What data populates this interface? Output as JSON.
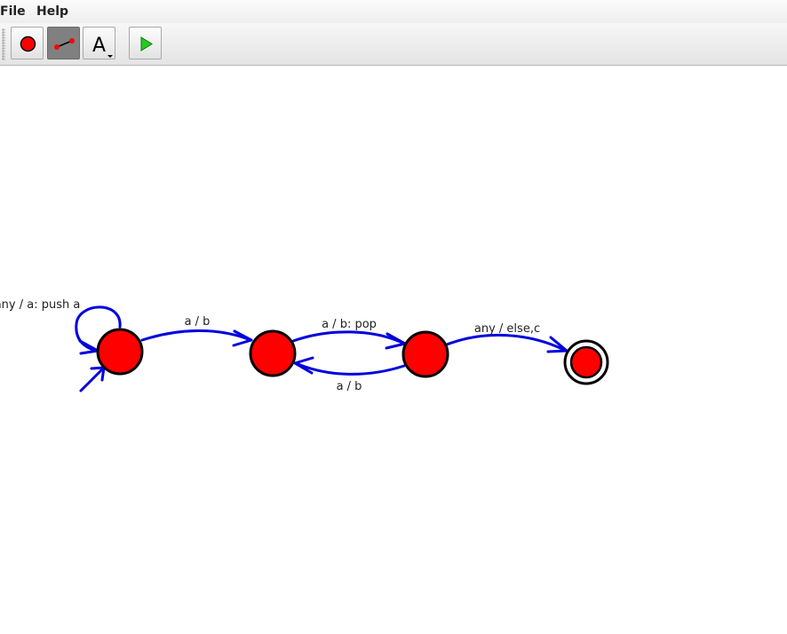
{
  "menu": {
    "file": "File",
    "help": "Help"
  },
  "toolbar": {
    "buttons": [
      {
        "name": "add-state-tool",
        "icon": "red-circle-icon",
        "pressed": false
      },
      {
        "name": "add-transition-tool",
        "icon": "transition-line-icon",
        "pressed": true
      },
      {
        "name": "text-tool",
        "icon": "letter-a-icon",
        "glyph": "A",
        "pressed": false
      },
      {
        "name": "run-button",
        "icon": "play-icon",
        "pressed": false
      }
    ]
  },
  "colors": {
    "state_fill": "#ff0000",
    "state_stroke": "#000000",
    "transition": "#0000dd",
    "label": "#222222"
  },
  "diagram": {
    "states": [
      {
        "id": "q0",
        "initial": true,
        "final": false
      },
      {
        "id": "q1",
        "initial": false,
        "final": false
      },
      {
        "id": "q2",
        "initial": false,
        "final": false
      },
      {
        "id": "q3",
        "initial": false,
        "final": true
      }
    ],
    "transitions": [
      {
        "from": "q0",
        "to": "q0",
        "label": "any / a: push a"
      },
      {
        "from": "q0",
        "to": "q1",
        "label": "a / b"
      },
      {
        "from": "q1",
        "to": "q2",
        "label": "a / b: pop"
      },
      {
        "from": "q2",
        "to": "q1",
        "label": "a / b"
      },
      {
        "from": "q2",
        "to": "q3",
        "label": "any / else,c"
      }
    ]
  }
}
